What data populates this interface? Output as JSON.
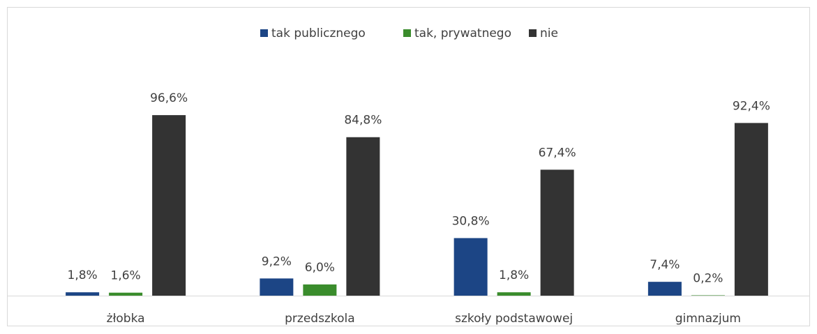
{
  "chart_data": {
    "type": "bar",
    "categories": [
      "żłobka",
      "przedszkola",
      "szkoły podstawowej",
      "gimnazjum"
    ],
    "series": [
      {
        "name": "tak publicznego",
        "color": "#1c4585",
        "values": [
          1.8,
          9.2,
          30.8,
          7.4
        ],
        "value_labels": [
          "1,8%",
          "9,2%",
          "30,8%",
          "7,4%"
        ]
      },
      {
        "name": "tak, prywatnego",
        "color": "#3a8c2c",
        "values": [
          1.6,
          6.0,
          1.8,
          0.2
        ],
        "value_labels": [
          "1,6%",
          "6,0%",
          "1,8%",
          "0,2%"
        ]
      },
      {
        "name": "nie",
        "color": "#333333",
        "values": [
          96.6,
          84.8,
          67.4,
          92.4
        ],
        "value_labels": [
          "96,6%",
          "84,8%",
          "67,4%",
          "92,4%"
        ]
      }
    ],
    "legend": "top"
  }
}
